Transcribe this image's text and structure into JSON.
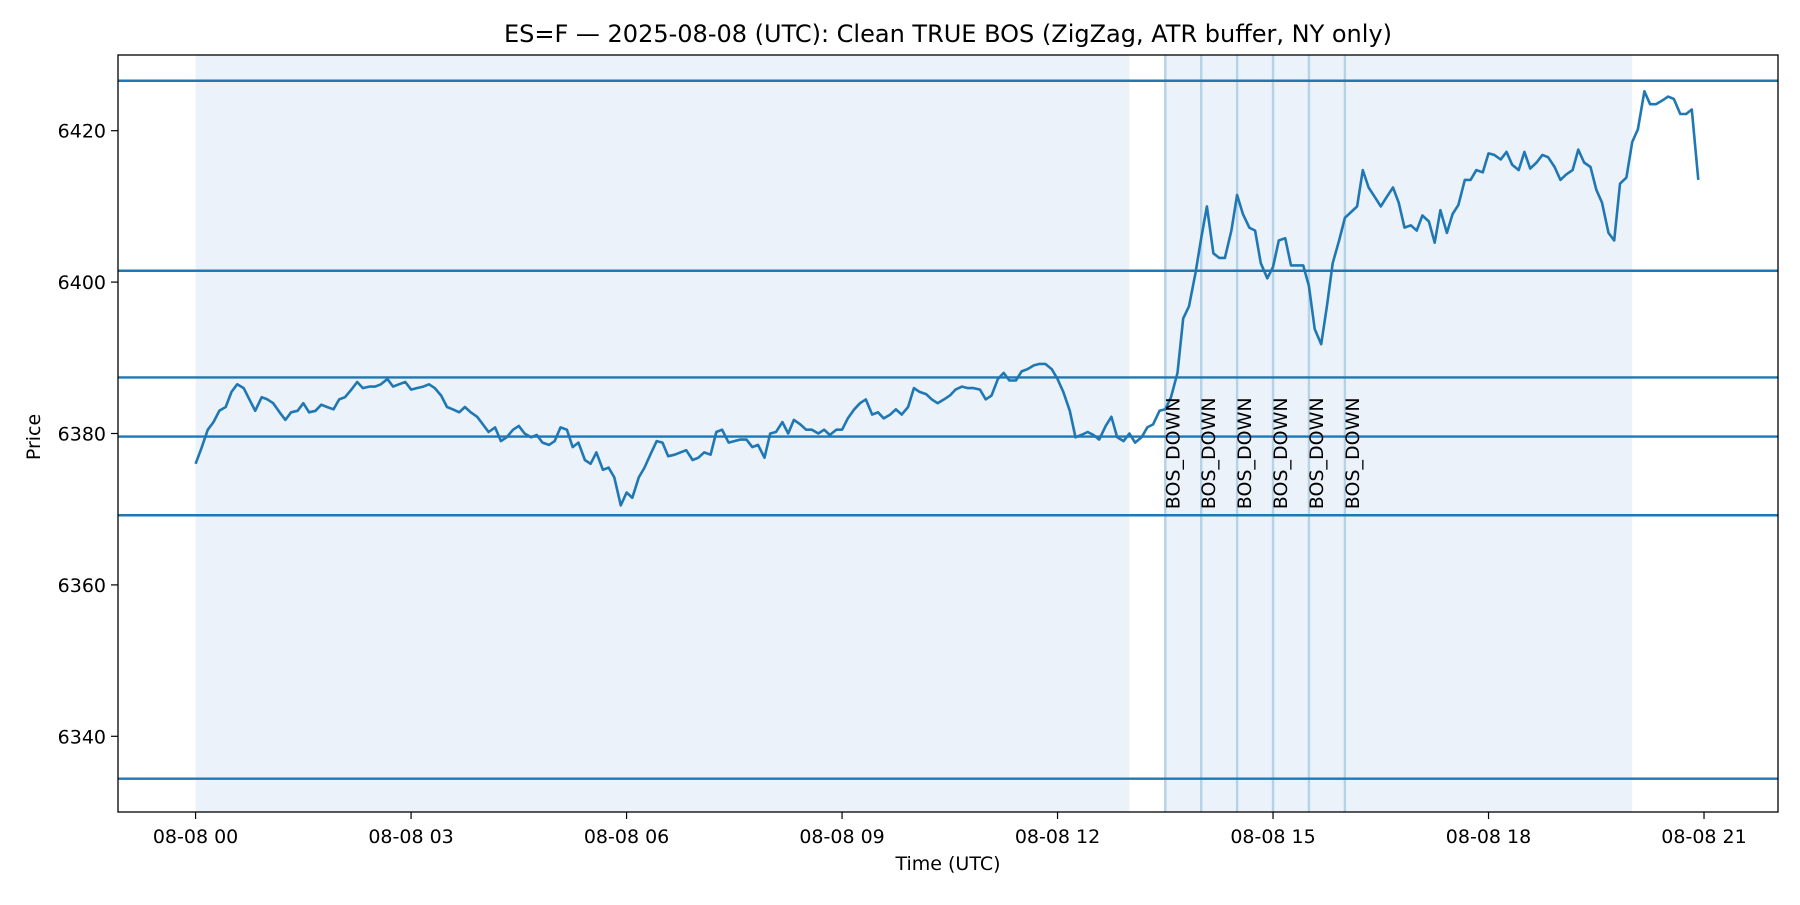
{
  "chart_data": {
    "type": "line",
    "title": "ES=F — 2025-08-08 (UTC): Clean TRUE BOS (ZigZag, ATR buffer, NY only)",
    "xlabel": "Time (UTC)",
    "ylabel": "Price",
    "x_unit": "hours (UTC) on 2025-08-08",
    "xlim": [
      -1.08,
      22.03
    ],
    "ylim": [
      6330,
      6430
    ],
    "x_ticks": [
      {
        "value": 0,
        "label": "08-08 00"
      },
      {
        "value": 3,
        "label": "08-08 03"
      },
      {
        "value": 6,
        "label": "08-08 06"
      },
      {
        "value": 9,
        "label": "08-08 09"
      },
      {
        "value": 12,
        "label": "08-08 12"
      },
      {
        "value": 15,
        "label": "08-08 15"
      },
      {
        "value": 18,
        "label": "08-08 18"
      },
      {
        "value": 21,
        "label": "08-08 21"
      }
    ],
    "y_ticks": [
      {
        "value": 6340,
        "label": "6340"
      },
      {
        "value": 6360,
        "label": "6360"
      },
      {
        "value": 6380,
        "label": "6380"
      },
      {
        "value": 6400,
        "label": "6400"
      },
      {
        "value": 6420,
        "label": "6420"
      }
    ],
    "grid": false,
    "legend": "none",
    "colors": {
      "line": "#1f77b4",
      "shade": "#ebf2f9",
      "event_line": "#b5d3e6",
      "axes": "#000000"
    },
    "shaded_regions": [
      {
        "x_start": 0,
        "x_end": 13.0
      },
      {
        "x_start": 13.5,
        "x_end": 20.0
      }
    ],
    "horizontal_levels": [
      6426.6,
      6401.5,
      6387.4,
      6379.6,
      6369.2,
      6334.4
    ],
    "events": [
      {
        "x": 13.5,
        "label": "BOS_DOWN"
      },
      {
        "x": 14.0,
        "label": "BOS_DOWN"
      },
      {
        "x": 14.5,
        "label": "BOS_DOWN"
      },
      {
        "x": 15.0,
        "label": "BOS_DOWN"
      },
      {
        "x": 15.5,
        "label": "BOS_DOWN"
      },
      {
        "x": 16.0,
        "label": "BOS_DOWN"
      }
    ],
    "series": [
      {
        "x": [
          0.0,
          0.08,
          0.17,
          0.25,
          0.33,
          0.42,
          0.5,
          0.58,
          0.67,
          0.75,
          0.83,
          0.92,
          1.0,
          1.08,
          1.17,
          1.25,
          1.33,
          1.42,
          1.5,
          1.58,
          1.67,
          1.75,
          1.83,
          1.92,
          2.0,
          2.08,
          2.17,
          2.25,
          2.33,
          2.42,
          2.5,
          2.58,
          2.67,
          2.75,
          2.83,
          2.92,
          3.0,
          3.08,
          3.17,
          3.25,
          3.33,
          3.42,
          3.5,
          3.58,
          3.67,
          3.75,
          3.83,
          3.92,
          4.0,
          4.08,
          4.17,
          4.25,
          4.33,
          4.42,
          4.5,
          4.58,
          4.67,
          4.75,
          4.83,
          4.92,
          5.0,
          5.08,
          5.17,
          5.25,
          5.33,
          5.42,
          5.5,
          5.58,
          5.67,
          5.75,
          5.83,
          5.92,
          6.0,
          6.08,
          6.17,
          6.25,
          6.33,
          6.42,
          6.5,
          6.58,
          6.67,
          6.75,
          6.83,
          6.92,
          7.0,
          7.08,
          7.17,
          7.25,
          7.33,
          7.42,
          7.5,
          7.58,
          7.67,
          7.75,
          7.83,
          7.92,
          8.0,
          8.08,
          8.17,
          8.25,
          8.33,
          8.42,
          8.5,
          8.58,
          8.67,
          8.75,
          8.83,
          8.92,
          9.0,
          9.08,
          9.17,
          9.25,
          9.33,
          9.42,
          9.5,
          9.58,
          9.67,
          9.75,
          9.83,
          9.92,
          10.0,
          10.08,
          10.17,
          10.25,
          10.33,
          10.42,
          10.5,
          10.58,
          10.67,
          10.75,
          10.83,
          10.92,
          11.0,
          11.08,
          11.17,
          11.25,
          11.33,
          11.42,
          11.5,
          11.58,
          11.67,
          11.75,
          11.83,
          11.92,
          12.0,
          12.08,
          12.17,
          12.25,
          12.33,
          12.42,
          12.5,
          12.58,
          12.67,
          12.75,
          12.83,
          12.92,
          13.0,
          13.08,
          13.17,
          13.25,
          13.33,
          13.42,
          13.5,
          13.58,
          13.67,
          13.75,
          13.83,
          13.92,
          14.0,
          14.08,
          14.17,
          14.25,
          14.33,
          14.42,
          14.5,
          14.58,
          14.67,
          14.75,
          14.83,
          14.92,
          15.0,
          15.08,
          15.17,
          15.25,
          15.33,
          15.42,
          15.5,
          15.58,
          15.67,
          15.75,
          15.83,
          15.92,
          16.0,
          16.08,
          16.17,
          16.25,
          16.33,
          16.42,
          16.5,
          16.58,
          16.67,
          16.75,
          16.83,
          16.92,
          17.0,
          17.08,
          17.17,
          17.25,
          17.33,
          17.42,
          17.5,
          17.58,
          17.67,
          17.75,
          17.83,
          17.92,
          18.0,
          18.08,
          18.17,
          18.25,
          18.33,
          18.42,
          18.5,
          18.58,
          18.67,
          18.75,
          18.83,
          18.92,
          19.0,
          19.08,
          19.17,
          19.25,
          19.33,
          19.42,
          19.5,
          19.58,
          19.67,
          19.75,
          19.83,
          19.92,
          20.0,
          20.08,
          20.17,
          20.25,
          20.33,
          20.42,
          20.5,
          20.58,
          20.67,
          20.75,
          20.83,
          20.92
        ],
        "y": [
          6376.0,
          6378.0,
          6380.5,
          6381.5,
          6383.0,
          6383.5,
          6385.5,
          6386.5,
          6386.0,
          6384.5,
          6383.0,
          6384.8,
          6384.5,
          6384.0,
          6382.8,
          6381.8,
          6382.8,
          6383.0,
          6384.0,
          6382.8,
          6383.0,
          6383.8,
          6383.5,
          6383.2,
          6384.5,
          6384.8,
          6385.8,
          6386.8,
          6386.0,
          6386.2,
          6386.2,
          6386.5,
          6387.2,
          6386.2,
          6386.5,
          6386.8,
          6385.8,
          6386.0,
          6386.2,
          6386.5,
          6386.0,
          6385.0,
          6383.5,
          6383.2,
          6382.8,
          6383.5,
          6382.8,
          6382.2,
          6381.2,
          6380.2,
          6380.8,
          6379.0,
          6379.5,
          6380.5,
          6381.0,
          6380.0,
          6379.5,
          6379.8,
          6378.8,
          6378.5,
          6379.0,
          6380.8,
          6380.5,
          6378.2,
          6378.8,
          6376.5,
          6376.0,
          6377.5,
          6375.2,
          6375.5,
          6374.2,
          6370.5,
          6372.2,
          6371.5,
          6374.2,
          6375.5,
          6377.2,
          6379.0,
          6378.8,
          6377.0,
          6377.2,
          6377.5,
          6377.8,
          6376.5,
          6376.8,
          6377.5,
          6377.2,
          6380.2,
          6380.5,
          6378.8,
          6379.0,
          6379.2,
          6379.2,
          6378.2,
          6378.5,
          6376.8,
          6380.0,
          6380.2,
          6381.5,
          6380.0,
          6381.8,
          6381.2,
          6380.5,
          6380.5,
          6380.0,
          6380.5,
          6379.8,
          6380.5,
          6380.5,
          6382.0,
          6383.2,
          6384.0,
          6384.5,
          6382.5,
          6382.8,
          6382.0,
          6382.5,
          6383.2,
          6382.5,
          6383.5,
          6386.0,
          6385.5,
          6385.2,
          6384.5,
          6384.0,
          6384.5,
          6385.0,
          6385.8,
          6386.2,
          6386.0,
          6386.0,
          6385.8,
          6384.5,
          6385.0,
          6387.2,
          6388.0,
          6387.0,
          6387.0,
          6388.2,
          6388.5,
          6389.0,
          6389.2,
          6389.2,
          6388.5,
          6387.2,
          6385.5,
          6383.0,
          6379.5,
          6379.8,
          6380.2,
          6379.8,
          6379.2,
          6381.0,
          6382.2,
          6379.5,
          6379.0,
          6380.0,
          6378.8,
          6379.5,
          6380.8,
          6381.2,
          6383.0,
          6383.2,
          6384.8,
          6388.0,
          6395.2,
          6396.8,
          6401.2,
          6405.8,
          6410.0,
          6403.8,
          6403.2,
          6403.2,
          6406.8,
          6411.5,
          6409.0,
          6407.2,
          6406.8,
          6402.5,
          6400.5,
          6402.0,
          6405.5,
          6405.8,
          6402.2,
          6402.2,
          6402.2,
          6399.5,
          6393.8,
          6391.8,
          6396.8,
          6402.5,
          6405.5,
          6408.5,
          6409.2,
          6410.0,
          6414.8,
          6412.5,
          6411.2,
          6410.0,
          6411.2,
          6412.5,
          6410.5,
          6407.2,
          6407.5,
          6406.8,
          6408.8,
          6408.0,
          6405.2,
          6409.5,
          6406.5,
          6409.0,
          6410.2,
          6413.5,
          6413.5,
          6414.8,
          6414.5,
          6417.0,
          6416.8,
          6416.2,
          6417.2,
          6415.5,
          6414.8,
          6417.2,
          6415.0,
          6415.8,
          6416.8,
          6416.5,
          6415.2,
          6413.5,
          6414.2,
          6414.8,
          6417.5,
          6415.8,
          6415.2,
          6412.2,
          6410.5,
          6406.5,
          6405.5,
          6413.0,
          6413.8,
          6418.5,
          6420.2,
          6425.2,
          6423.5,
          6423.5,
          6424.0,
          6424.5,
          6424.2,
          6422.2,
          6422.2,
          6422.8,
          6413.5
        ]
      }
    ]
  }
}
